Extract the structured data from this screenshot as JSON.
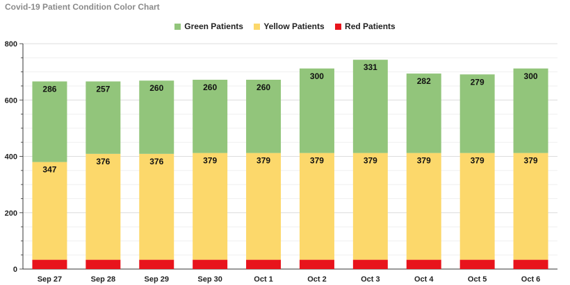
{
  "chart_data": {
    "type": "bar",
    "stacked": true,
    "title": "Covid-19 Patient Condition Color Chart",
    "xlabel": "",
    "ylabel": "",
    "ylim": [
      0,
      800
    ],
    "yticks": [
      0,
      200,
      400,
      600,
      800
    ],
    "grid": true,
    "legend_position": "top",
    "categories": [
      "Sep 27",
      "Sep 28",
      "Sep 29",
      "Sep 30",
      "Oct 1",
      "Oct 2",
      "Oct 3",
      "Oct 4",
      "Oct 5",
      "Oct 6"
    ],
    "series": [
      {
        "name": "Red Patients",
        "color": "#e8141c",
        "values": [
          33,
          33,
          33,
          33,
          33,
          33,
          33,
          33,
          33,
          33
        ],
        "labels_shown": false
      },
      {
        "name": "Yellow Patients",
        "color": "#fcd86b",
        "values": [
          347,
          376,
          376,
          379,
          379,
          379,
          379,
          379,
          379,
          379
        ],
        "labels_shown": true
      },
      {
        "name": "Green Patients",
        "color": "#92c57b",
        "values": [
          286,
          257,
          260,
          260,
          260,
          300,
          331,
          282,
          279,
          300
        ],
        "labels_shown": true
      }
    ],
    "legend_order": [
      "Green Patients",
      "Yellow Patients",
      "Red Patients"
    ]
  }
}
